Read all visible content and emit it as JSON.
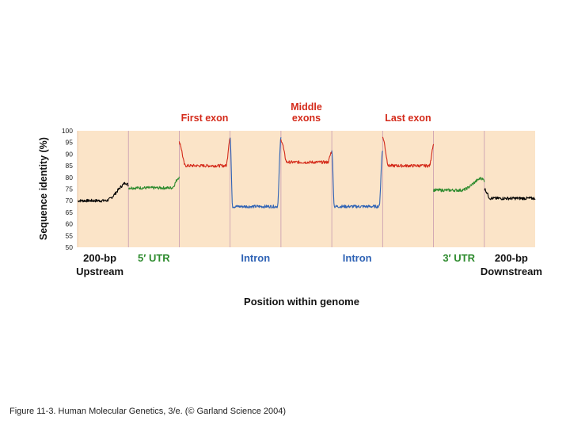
{
  "caption": "Figure 11-3. Human Molecular Genetics, 3/e. (© Garland Science 2004)",
  "chart_data": {
    "type": "line",
    "title": "",
    "xlabel": "Position within genome",
    "ylabel": "Sequence identity (%)",
    "ylim": [
      50,
      100
    ],
    "yticks": [
      100,
      95,
      90,
      85,
      80,
      75,
      70,
      65,
      60,
      55,
      50
    ],
    "grid": false,
    "background_color": "#fbe4c8",
    "regions": [
      {
        "key": "upstream",
        "bottom_label": [
          "200-bp",
          "Upstream"
        ],
        "top_label": [],
        "color": "#000000",
        "baseline": 70,
        "shape": "rise",
        "end_value": 78
      },
      {
        "key": "utr5",
        "bottom_label": [
          "5′ UTR"
        ],
        "top_label": [],
        "color": "#2e8b2e",
        "baseline": 75.5,
        "shape": "flat_rise",
        "end_value": 80
      },
      {
        "key": "first_exon",
        "bottom_label": [],
        "top_label": [
          "First exon"
        ],
        "color": "#d42a1a",
        "baseline": 85,
        "shape": "spike_left_right",
        "start_value": 95,
        "end_value": 97
      },
      {
        "key": "intron1",
        "bottom_label": [
          "Intron"
        ],
        "top_label": [],
        "color": "#2f63b5",
        "baseline": 67.5,
        "shape": "u_edges",
        "edge_value": 97
      },
      {
        "key": "middle_exons",
        "bottom_label": [],
        "top_label": [
          "Middle",
          "exons"
        ],
        "color": "#d42a1a",
        "baseline": 86.5,
        "shape": "spike_left_right",
        "start_value": 96,
        "end_value": 91
      },
      {
        "key": "intron2",
        "bottom_label": [
          "Intron"
        ],
        "top_label": [],
        "color": "#2f63b5",
        "baseline": 67.5,
        "shape": "u_edges",
        "edge_value": 92
      },
      {
        "key": "last_exon",
        "bottom_label": [],
        "top_label": [
          "Last exon"
        ],
        "color": "#d42a1a",
        "baseline": 85,
        "shape": "spike_left_right",
        "start_value": 97,
        "end_value": 94
      },
      {
        "key": "utr3",
        "bottom_label": [
          "3′ UTR"
        ],
        "top_label": [],
        "color": "#2e8b2e",
        "baseline": 74.5,
        "shape": "rise",
        "end_value": 80
      },
      {
        "key": "downstream",
        "bottom_label": [
          "200-bp",
          "Downstream"
        ],
        "top_label": [],
        "color": "#000000",
        "baseline": 71,
        "shape": "start_high",
        "start_value": 75
      }
    ]
  }
}
